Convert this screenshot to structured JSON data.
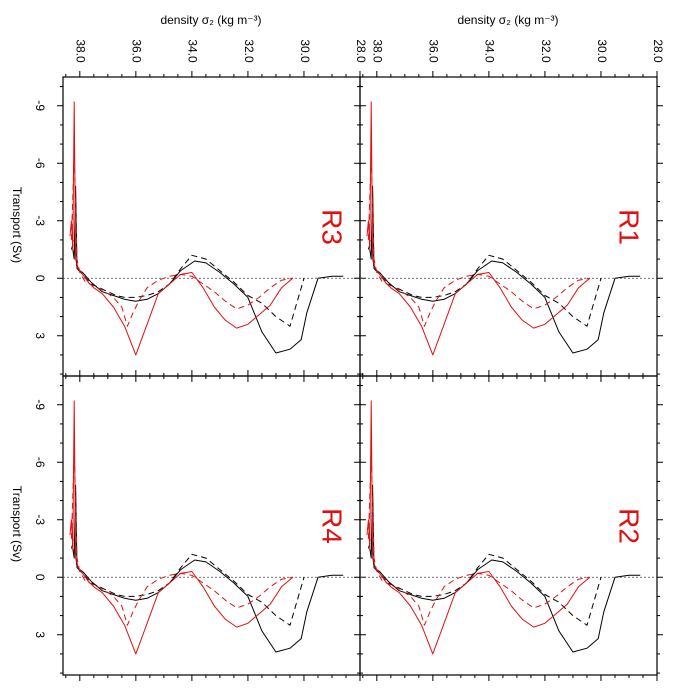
{
  "figure": {
    "top_axis_title": "density σ₂ (kg m⁻³)",
    "left_axis_title": "Transport (Sv)"
  },
  "colors": {
    "black": "#000000",
    "red": "#e01010",
    "zero_line": "#444444"
  },
  "chart_data": {
    "type": "line",
    "x_axis": {
      "label": "density σ₂ (kg m⁻³)",
      "range": [
        38.6,
        28.0
      ],
      "ticks": [
        38.0,
        36.0,
        34.0,
        32.0,
        30.0,
        28.0
      ],
      "reversed": true
    },
    "y_axis": {
      "label": "Transport (Sv)",
      "range": [
        -10.5,
        5.1
      ],
      "ticks": [
        -9,
        -6,
        -3,
        0,
        3
      ],
      "reversed": true
    },
    "zero_line": "dashed",
    "panels": [
      {
        "label": "R3",
        "series": [
          {
            "color": "black",
            "style": "solid",
            "x": [
              38.25,
              38.2,
              38.15,
              38.1,
              37.9,
              37.6,
              37.2,
              36.8,
              36.4,
              36.0,
              35.6,
              35.2,
              34.8,
              34.4,
              33.9,
              33.5,
              33.0,
              32.5,
              32.0,
              31.5,
              31.0,
              30.5,
              30.1,
              29.9,
              29.5,
              29.0,
              28.6
            ],
            "y": [
              -1.5,
              -1.0,
              -4.8,
              -0.5,
              -0.3,
              0.2,
              0.7,
              0.9,
              1.1,
              1.2,
              1.1,
              0.8,
              0.3,
              -0.4,
              -0.9,
              -0.8,
              -0.3,
              0.3,
              1.0,
              2.8,
              3.9,
              3.7,
              3.2,
              1.8,
              0.0,
              -0.1,
              -0.1
            ]
          },
          {
            "color": "black",
            "style": "dashed",
            "x": [
              38.3,
              38.2,
              38.1,
              37.9,
              37.6,
              37.3,
              37.0,
              36.7,
              36.4,
              36.0,
              35.6,
              35.2,
              34.8,
              34.4,
              34.0,
              33.5,
              33.0,
              32.5,
              32.0,
              31.5,
              31.0,
              30.5,
              30.0
            ],
            "y": [
              -1.5,
              -2.0,
              -0.5,
              -0.2,
              0.3,
              0.5,
              0.7,
              0.9,
              1.0,
              1.0,
              0.9,
              0.7,
              0.3,
              -0.5,
              -1.2,
              -1.0,
              -0.4,
              0.2,
              0.9,
              1.3,
              2.0,
              2.5,
              0.0
            ]
          },
          {
            "color": "red",
            "style": "solid",
            "x": [
              38.35,
              38.3,
              38.25,
              38.2,
              38.15,
              38.05,
              37.9,
              37.7,
              37.5,
              37.2,
              36.8,
              36.4,
              36.0,
              35.6,
              35.2,
              34.8,
              34.4,
              34.0,
              33.6,
              33.2,
              32.8,
              32.4,
              32.0,
              31.6,
              31.2,
              30.8,
              30.4
            ],
            "y": [
              -2.2,
              -3.0,
              -1.5,
              -9.2,
              -1.0,
              -0.5,
              -0.2,
              0.2,
              0.5,
              0.8,
              1.5,
              2.5,
              4.0,
              2.4,
              0.8,
              0.3,
              -0.2,
              -0.3,
              0.5,
              1.5,
              2.2,
              2.6,
              2.4,
              1.9,
              1.4,
              0.5,
              0.0
            ]
          },
          {
            "color": "red",
            "style": "dashed",
            "x": [
              38.3,
              38.2,
              38.1,
              38.0,
              37.8,
              37.5,
              37.2,
              36.8,
              36.5,
              36.3,
              36.1,
              35.9,
              35.6,
              35.2,
              34.8,
              34.4,
              34.0,
              33.6,
              33.2,
              32.8,
              32.4,
              32.0,
              31.6,
              31.2,
              30.8,
              30.4
            ],
            "y": [
              -2.0,
              -6.5,
              -1.0,
              -0.3,
              0.2,
              0.4,
              0.6,
              1.0,
              1.5,
              2.5,
              1.8,
              1.2,
              0.5,
              0.1,
              -0.1,
              -0.2,
              -0.1,
              0.3,
              0.7,
              1.2,
              1.6,
              1.4,
              1.0,
              0.5,
              0.1,
              0.0
            ]
          }
        ]
      },
      {
        "label": "R1",
        "series": [
          {
            "color": "black",
            "style": "solid",
            "x": [
              38.25,
              38.2,
              38.15,
              38.1,
              37.9,
              37.6,
              37.2,
              36.8,
              36.4,
              36.0,
              35.6,
              35.2,
              34.8,
              34.4,
              33.9,
              33.5,
              33.0,
              32.5,
              32.0,
              31.5,
              31.0,
              30.5,
              30.1,
              29.9,
              29.5,
              29.0,
              28.6
            ],
            "y": [
              -1.5,
              -1.0,
              -4.8,
              -0.5,
              -0.3,
              0.2,
              0.7,
              0.9,
              1.1,
              1.2,
              1.1,
              0.8,
              0.3,
              -0.4,
              -0.9,
              -0.8,
              -0.3,
              0.3,
              1.0,
              2.8,
              3.9,
              3.7,
              3.2,
              1.8,
              0.0,
              -0.1,
              -0.1
            ]
          },
          {
            "color": "black",
            "style": "dashed",
            "x": [
              38.3,
              38.2,
              38.1,
              37.9,
              37.6,
              37.3,
              37.0,
              36.7,
              36.4,
              36.0,
              35.6,
              35.2,
              34.8,
              34.4,
              34.0,
              33.5,
              33.0,
              32.5,
              32.0,
              31.5,
              31.0,
              30.5,
              30.0
            ],
            "y": [
              -1.5,
              -2.0,
              -0.5,
              -0.2,
              0.3,
              0.5,
              0.7,
              0.9,
              1.0,
              1.0,
              0.9,
              0.7,
              0.3,
              -0.5,
              -1.2,
              -1.0,
              -0.4,
              0.2,
              0.9,
              1.3,
              2.0,
              2.5,
              0.0
            ]
          },
          {
            "color": "red",
            "style": "solid",
            "x": [
              38.35,
              38.3,
              38.25,
              38.2,
              38.15,
              38.05,
              37.9,
              37.7,
              37.5,
              37.2,
              36.8,
              36.4,
              36.0,
              35.6,
              35.2,
              34.8,
              34.4,
              34.0,
              33.6,
              33.2,
              32.8,
              32.4,
              32.0,
              31.6,
              31.2,
              30.8,
              30.4
            ],
            "y": [
              -2.2,
              -3.0,
              -1.5,
              -9.2,
              -1.0,
              -0.5,
              -0.2,
              0.2,
              0.5,
              0.8,
              1.5,
              2.5,
              4.0,
              2.4,
              0.8,
              0.3,
              -0.2,
              -0.3,
              0.5,
              1.5,
              2.2,
              2.6,
              2.4,
              1.9,
              1.4,
              0.5,
              0.0
            ]
          },
          {
            "color": "red",
            "style": "dashed",
            "x": [
              38.3,
              38.2,
              38.1,
              38.0,
              37.8,
              37.5,
              37.2,
              36.8,
              36.5,
              36.3,
              36.1,
              35.9,
              35.6,
              35.2,
              34.8,
              34.4,
              34.0,
              33.6,
              33.2,
              32.8,
              32.4,
              32.0,
              31.6,
              31.2,
              30.8,
              30.4
            ],
            "y": [
              -2.0,
              -6.5,
              -1.0,
              -0.3,
              0.2,
              0.4,
              0.6,
              1.0,
              1.5,
              2.5,
              1.8,
              1.2,
              0.5,
              0.1,
              -0.1,
              -0.2,
              -0.1,
              0.3,
              0.7,
              1.2,
              1.6,
              1.4,
              1.0,
              0.5,
              0.1,
              0.0
            ]
          }
        ]
      },
      {
        "label": "R4",
        "series": [
          {
            "color": "black",
            "style": "solid",
            "x": [
              38.25,
              38.2,
              38.15,
              38.1,
              37.9,
              37.6,
              37.2,
              36.8,
              36.4,
              36.0,
              35.6,
              35.2,
              34.8,
              34.4,
              33.9,
              33.5,
              33.0,
              32.5,
              32.0,
              31.5,
              31.0,
              30.5,
              30.1,
              29.9,
              29.5,
              29.0,
              28.6
            ],
            "y": [
              -1.5,
              -1.0,
              -4.8,
              -0.5,
              -0.3,
              0.2,
              0.7,
              0.9,
              1.1,
              1.2,
              1.1,
              0.8,
              0.3,
              -0.4,
              -0.9,
              -0.8,
              -0.3,
              0.3,
              1.0,
              2.8,
              3.9,
              3.7,
              3.2,
              1.8,
              0.0,
              -0.1,
              -0.1
            ]
          },
          {
            "color": "black",
            "style": "dashed",
            "x": [
              38.3,
              38.2,
              38.1,
              37.9,
              37.6,
              37.3,
              37.0,
              36.7,
              36.4,
              36.0,
              35.6,
              35.2,
              34.8,
              34.4,
              34.0,
              33.5,
              33.0,
              32.5,
              32.0,
              31.5,
              31.0,
              30.5,
              30.0
            ],
            "y": [
              -1.5,
              -2.0,
              -0.5,
              -0.2,
              0.3,
              0.5,
              0.7,
              0.9,
              1.0,
              1.0,
              0.9,
              0.7,
              0.3,
              -0.5,
              -1.2,
              -1.0,
              -0.4,
              0.2,
              0.9,
              1.3,
              2.0,
              2.5,
              0.0
            ]
          },
          {
            "color": "red",
            "style": "solid",
            "x": [
              38.35,
              38.3,
              38.25,
              38.2,
              38.15,
              38.05,
              37.9,
              37.7,
              37.5,
              37.2,
              36.8,
              36.4,
              36.0,
              35.6,
              35.2,
              34.8,
              34.4,
              34.0,
              33.6,
              33.2,
              32.8,
              32.4,
              32.0,
              31.6,
              31.2,
              30.8,
              30.4
            ],
            "y": [
              -2.2,
              -3.0,
              -1.5,
              -9.2,
              -1.0,
              -0.5,
              -0.2,
              0.2,
              0.5,
              0.8,
              1.5,
              2.5,
              4.0,
              2.4,
              0.8,
              0.3,
              -0.2,
              -0.3,
              0.5,
              1.5,
              2.2,
              2.6,
              2.4,
              1.9,
              1.4,
              0.5,
              0.0
            ]
          },
          {
            "color": "red",
            "style": "dashed",
            "x": [
              38.3,
              38.2,
              38.1,
              38.0,
              37.8,
              37.5,
              37.2,
              36.8,
              36.5,
              36.3,
              36.1,
              35.9,
              35.6,
              35.2,
              34.8,
              34.4,
              34.0,
              33.6,
              33.2,
              32.8,
              32.4,
              32.0,
              31.6,
              31.2,
              30.8,
              30.4
            ],
            "y": [
              -2.0,
              -6.5,
              -1.0,
              -0.3,
              0.2,
              0.4,
              0.6,
              1.0,
              1.5,
              2.5,
              1.8,
              1.2,
              0.5,
              0.1,
              -0.1,
              -0.2,
              -0.1,
              0.3,
              0.7,
              1.2,
              1.6,
              1.4,
              1.0,
              0.5,
              0.1,
              0.0
            ]
          }
        ]
      },
      {
        "label": "R2",
        "series": [
          {
            "color": "black",
            "style": "solid",
            "x": [
              38.25,
              38.2,
              38.15,
              38.1,
              37.9,
              37.6,
              37.2,
              36.8,
              36.4,
              36.0,
              35.6,
              35.2,
              34.8,
              34.4,
              33.9,
              33.5,
              33.0,
              32.5,
              32.0,
              31.5,
              31.0,
              30.5,
              30.1,
              29.9,
              29.5,
              29.0,
              28.6
            ],
            "y": [
              -1.5,
              -1.0,
              -4.8,
              -0.5,
              -0.3,
              0.2,
              0.7,
              0.9,
              1.1,
              1.2,
              1.1,
              0.8,
              0.3,
              -0.4,
              -0.9,
              -0.8,
              -0.3,
              0.3,
              1.0,
              2.8,
              3.9,
              3.7,
              3.2,
              1.8,
              0.0,
              -0.1,
              -0.1
            ]
          },
          {
            "color": "black",
            "style": "dashed",
            "x": [
              38.3,
              38.2,
              38.1,
              37.9,
              37.6,
              37.3,
              37.0,
              36.7,
              36.4,
              36.0,
              35.6,
              35.2,
              34.8,
              34.4,
              34.0,
              33.5,
              33.0,
              32.5,
              32.0,
              31.5,
              31.0,
              30.5,
              30.0
            ],
            "y": [
              -1.5,
              -2.0,
              -0.5,
              -0.2,
              0.3,
              0.5,
              0.7,
              0.9,
              1.0,
              1.0,
              0.9,
              0.7,
              0.3,
              -0.5,
              -1.2,
              -1.0,
              -0.4,
              0.2,
              0.9,
              1.3,
              2.0,
              2.5,
              0.0
            ]
          },
          {
            "color": "red",
            "style": "solid",
            "x": [
              38.35,
              38.3,
              38.25,
              38.2,
              38.15,
              38.05,
              37.9,
              37.7,
              37.5,
              37.2,
              36.8,
              36.4,
              36.0,
              35.6,
              35.2,
              34.8,
              34.4,
              34.0,
              33.6,
              33.2,
              32.8,
              32.4,
              32.0,
              31.6,
              31.2,
              30.8,
              30.4
            ],
            "y": [
              -2.2,
              -3.0,
              -1.5,
              -9.2,
              -1.0,
              -0.5,
              -0.2,
              0.2,
              0.5,
              0.8,
              1.5,
              2.5,
              4.0,
              2.4,
              0.8,
              0.3,
              -0.2,
              -0.3,
              0.5,
              1.5,
              2.2,
              2.6,
              2.4,
              1.9,
              1.4,
              0.5,
              0.0
            ]
          },
          {
            "color": "red",
            "style": "dashed",
            "x": [
              38.3,
              38.2,
              38.1,
              38.0,
              37.8,
              37.5,
              37.2,
              36.8,
              36.5,
              36.3,
              36.1,
              35.9,
              35.6,
              35.2,
              34.8,
              34.4,
              34.0,
              33.6,
              33.2,
              32.8,
              32.4,
              32.0,
              31.6,
              31.2,
              30.8,
              30.4
            ],
            "y": [
              -2.0,
              -6.5,
              -1.0,
              -0.3,
              0.2,
              0.4,
              0.6,
              1.0,
              1.5,
              2.5,
              1.8,
              1.2,
              0.5,
              0.1,
              -0.1,
              -0.2,
              -0.1,
              0.3,
              0.7,
              1.2,
              1.6,
              1.4,
              1.0,
              0.5,
              0.1,
              0.0
            ]
          }
        ]
      }
    ]
  }
}
